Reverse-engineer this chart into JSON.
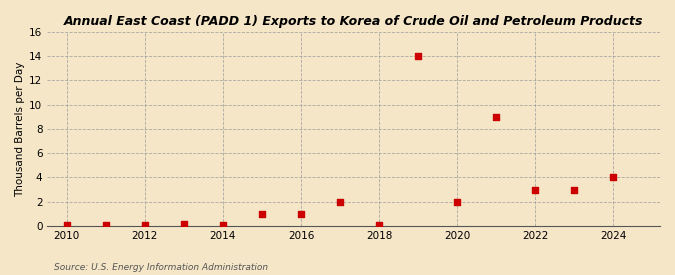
{
  "title": "Annual East Coast (PADD 1) Exports to Korea of Crude Oil and Petroleum Products",
  "ylabel": "Thousand Barrels per Day",
  "source": "Source: U.S. Energy Information Administration",
  "background_color": "#f5e6c8",
  "plot_bg_color": "#f5e6c8",
  "marker_color": "#cc0000",
  "marker": "s",
  "marker_size": 4,
  "xlim": [
    2009.5,
    2025.2
  ],
  "ylim": [
    0,
    16
  ],
  "xticks": [
    2010,
    2012,
    2014,
    2016,
    2018,
    2020,
    2022,
    2024
  ],
  "yticks": [
    0,
    2,
    4,
    6,
    8,
    10,
    12,
    14,
    16
  ],
  "x": [
    2010,
    2011,
    2012,
    2013,
    2014,
    2015,
    2016,
    2017,
    2018,
    2019,
    2020,
    2021,
    2022,
    2023,
    2024
  ],
  "y": [
    0.05,
    0.1,
    0.1,
    0.15,
    0.1,
    1.0,
    1.0,
    2.0,
    0.1,
    14.0,
    2.0,
    9.0,
    3.0,
    3.0,
    4.0
  ]
}
